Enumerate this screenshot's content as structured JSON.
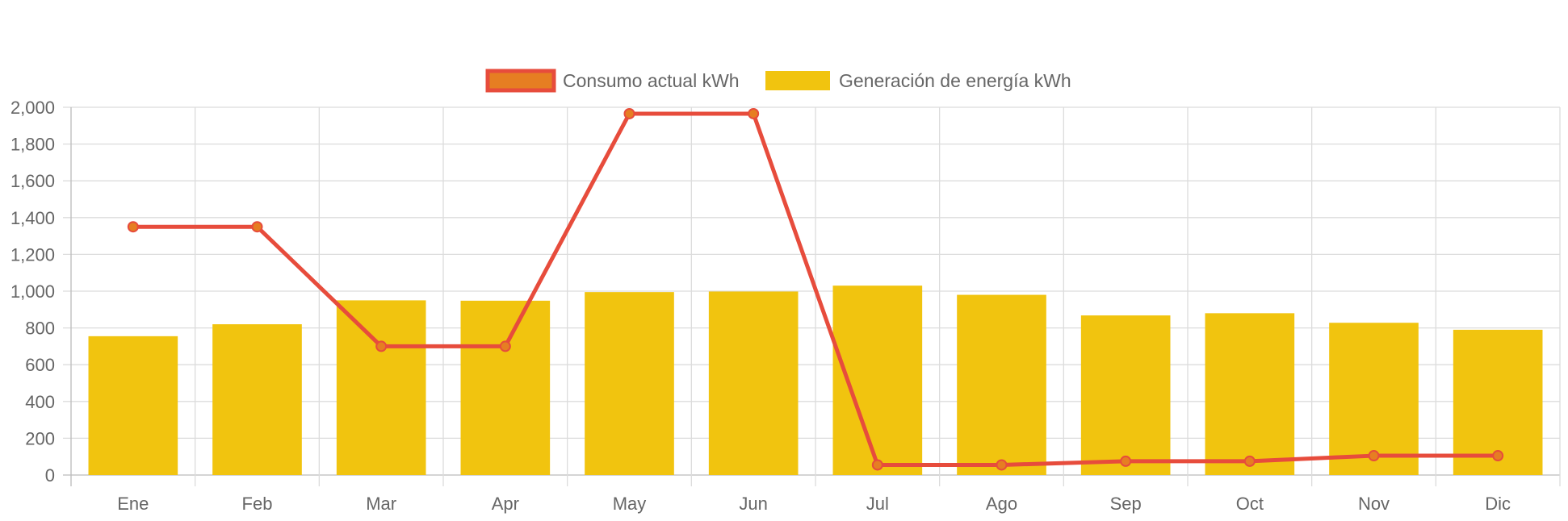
{
  "chart_data": {
    "type": "bar",
    "title": "",
    "xlabel": "",
    "ylabel": "",
    "categories": [
      "Ene",
      "Feb",
      "Mar",
      "Apr",
      "May",
      "Jun",
      "Jul",
      "Ago",
      "Sep",
      "Oct",
      "Nov",
      "Dic"
    ],
    "ylim": [
      0,
      2000
    ],
    "y_ticks": [
      0,
      200,
      400,
      600,
      800,
      1000,
      1200,
      1400,
      1600,
      1800,
      2000
    ],
    "y_tick_labels": [
      "0",
      "200",
      "400",
      "600",
      "800",
      "1,000",
      "1,200",
      "1,400",
      "1,600",
      "1,800",
      "2,000"
    ],
    "grid": true,
    "legend_position": "top-center",
    "series": [
      {
        "name": "Consumo actual kWh",
        "type": "line",
        "color": "#e74c3c",
        "point_color": "#e67e22",
        "values": [
          1350,
          1350,
          700,
          700,
          1965,
          1965,
          55,
          55,
          75,
          75,
          105,
          105
        ]
      },
      {
        "name": "Generación de energía kWh",
        "type": "bar",
        "color": "#f1c40f",
        "values": [
          755,
          820,
          950,
          948,
          995,
          998,
          1030,
          980,
          868,
          880,
          828,
          790
        ]
      }
    ]
  }
}
